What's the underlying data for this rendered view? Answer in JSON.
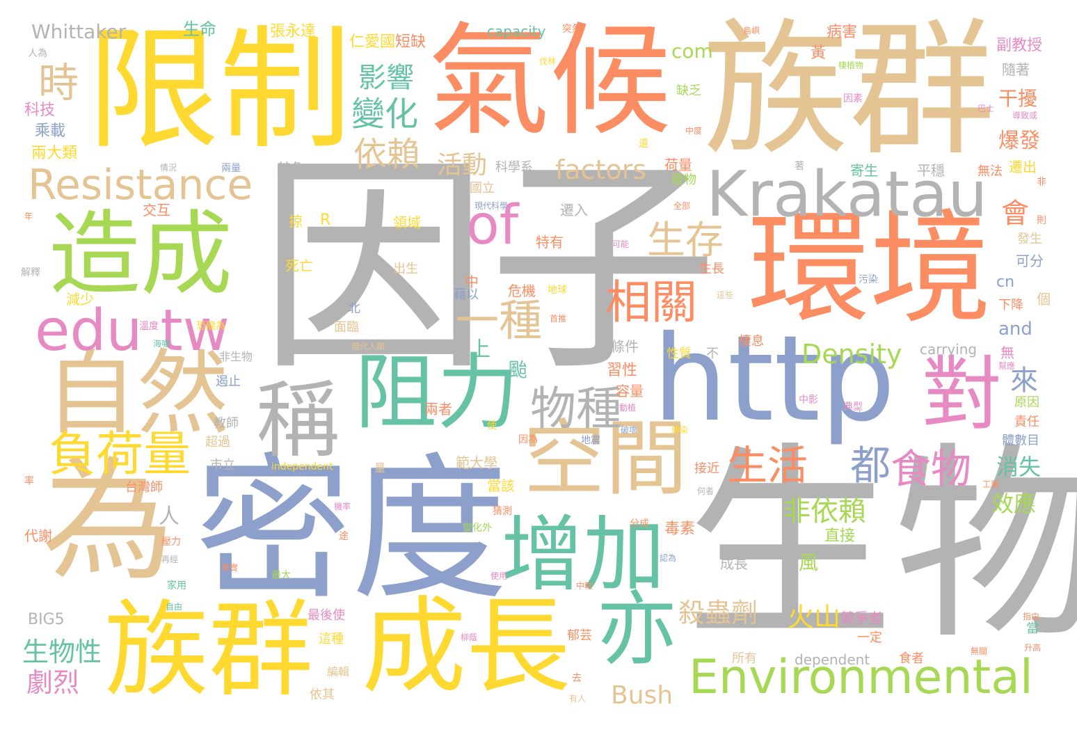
{
  "palette": {
    "gray": "#b3b3b3",
    "yellow": "#ffd92f",
    "orange": "#fc8d62",
    "tan": "#e5c494",
    "blue": "#8da0cb",
    "green": "#a6d854",
    "teal": "#66c2a5",
    "pink": "#e78ac3",
    "background": "#ffffff"
  },
  "words": [
    {
      "text": "因子",
      "color": "gray"
    },
    {
      "text": "生物",
      "color": "gray"
    },
    {
      "text": "密度",
      "color": "blue"
    },
    {
      "text": "族群",
      "color": "tan"
    },
    {
      "text": "限制",
      "color": "yellow"
    },
    {
      "text": "氣候",
      "color": "orange"
    },
    {
      "text": "環境",
      "color": "orange"
    },
    {
      "text": "為",
      "color": "tan"
    },
    {
      "text": "http",
      "color": "blue"
    },
    {
      "text": "成長",
      "color": "yellow"
    },
    {
      "text": "族群",
      "color": "yellow"
    },
    {
      "text": "自然",
      "color": "tan"
    },
    {
      "text": "造成",
      "color": "green"
    },
    {
      "text": "Krakatau",
      "color": "gray"
    },
    {
      "text": "edu tw",
      "color": "pink"
    },
    {
      "text": "空間",
      "color": "tan"
    },
    {
      "text": "增加",
      "color": "teal"
    },
    {
      "text": "阻力",
      "color": "teal"
    },
    {
      "text": "稱",
      "color": "gray"
    },
    {
      "text": "亦",
      "color": "teal"
    },
    {
      "text": "對",
      "color": "pink"
    },
    {
      "text": "Environmental",
      "color": "green"
    },
    {
      "text": "Resistance",
      "color": "tan"
    },
    {
      "text": "負荷量",
      "color": "yellow"
    },
    {
      "text": "物種",
      "color": "gray"
    },
    {
      "text": "相關",
      "color": "orange"
    },
    {
      "text": "生存",
      "color": "tan"
    },
    {
      "text": "of",
      "color": "pink"
    },
    {
      "text": "一種",
      "color": "tan"
    },
    {
      "text": "生活",
      "color": "orange"
    },
    {
      "text": "食物",
      "color": "pink"
    },
    {
      "text": "都",
      "color": "blue"
    },
    {
      "text": "變化",
      "color": "teal"
    },
    {
      "text": "依賴",
      "color": "tan"
    },
    {
      "text": "影響",
      "color": "teal"
    },
    {
      "text": "時",
      "color": "tan"
    },
    {
      "text": "factors",
      "color": "tan"
    },
    {
      "text": "活動",
      "color": "tan"
    },
    {
      "text": "會",
      "color": "orange"
    },
    {
      "text": "非依賴",
      "color": "green"
    },
    {
      "text": "殺蟲劑",
      "color": "tan"
    },
    {
      "text": "火山",
      "color": "yellow"
    },
    {
      "text": "Density",
      "color": "green"
    },
    {
      "text": "生物性",
      "color": "teal"
    },
    {
      "text": "劇烈",
      "color": "pink"
    },
    {
      "text": "Bush",
      "color": "tan"
    },
    {
      "text": "來",
      "color": "blue"
    },
    {
      "text": "消失",
      "color": "teal"
    },
    {
      "text": "效應",
      "color": "green"
    },
    {
      "text": "爆發",
      "color": "orange"
    },
    {
      "text": "干擾",
      "color": "orange"
    },
    {
      "text": "Whittaker",
      "color": "gray"
    },
    {
      "text": "com",
      "color": "green"
    },
    {
      "text": "capacity",
      "color": "teal"
    },
    {
      "text": "生命",
      "color": "teal"
    },
    {
      "text": "張永達",
      "color": "yellow"
    },
    {
      "text": "仁愛國",
      "color": "yellow"
    },
    {
      "text": "短缺",
      "color": "orange"
    },
    {
      "text": "黃",
      "color": "orange"
    },
    {
      "text": "病害",
      "color": "orange"
    },
    {
      "text": "副教授",
      "color": "pink"
    },
    {
      "text": "隨著",
      "color": "gray"
    },
    {
      "text": "科技",
      "color": "pink"
    },
    {
      "text": "乘載",
      "color": "blue"
    },
    {
      "text": "兩大類",
      "color": "yellow"
    },
    {
      "text": "人為",
      "color": "gray"
    },
    {
      "text": "其負",
      "color": "gray"
    },
    {
      "text": "科學系",
      "color": "gray"
    },
    {
      "text": "荷量",
      "color": "orange"
    },
    {
      "text": "廢物",
      "color": "green"
    },
    {
      "text": "寄生",
      "color": "teal"
    },
    {
      "text": "平穩",
      "color": "gray"
    },
    {
      "text": "無法",
      "color": "orange"
    },
    {
      "text": "遷出",
      "color": "yellow"
    },
    {
      "text": "國立",
      "color": "tan"
    },
    {
      "text": "遷入",
      "color": "gray"
    },
    {
      "text": "缺乏",
      "color": "green"
    },
    {
      "text": "特有",
      "color": "orange"
    },
    {
      "text": "交互",
      "color": "orange"
    },
    {
      "text": "掠",
      "color": "yellow"
    },
    {
      "text": "R",
      "color": "yellow"
    },
    {
      "text": "領域",
      "color": "yellow"
    },
    {
      "text": "死亡",
      "color": "yellow"
    },
    {
      "text": "出生",
      "color": "tan"
    },
    {
      "text": "危機",
      "color": "orange"
    },
    {
      "text": "地球",
      "color": "yellow"
    },
    {
      "text": "生長",
      "color": "orange"
    },
    {
      "text": "可分",
      "color": "blue"
    },
    {
      "text": "cn",
      "color": "blue"
    },
    {
      "text": "下降",
      "color": "orange"
    },
    {
      "text": "個",
      "color": "tan"
    },
    {
      "text": "and",
      "color": "blue"
    },
    {
      "text": "carrying",
      "color": "gray"
    },
    {
      "text": "無",
      "color": "pink"
    },
    {
      "text": "原因",
      "color": "green"
    },
    {
      "text": "責任",
      "color": "orange"
    },
    {
      "text": "體數目",
      "color": "blue"
    },
    {
      "text": "減少",
      "color": "yellow"
    },
    {
      "text": "藉以",
      "color": "blue"
    },
    {
      "text": "北",
      "color": "blue"
    },
    {
      "text": "面臨",
      "color": "tan"
    },
    {
      "text": "上",
      "color": "teal"
    },
    {
      "text": "颱",
      "color": "teal"
    },
    {
      "text": "人",
      "color": "gray"
    },
    {
      "text": "風",
      "color": "green"
    },
    {
      "text": "直接",
      "color": "green"
    },
    {
      "text": "毒素",
      "color": "orange"
    },
    {
      "text": "成長",
      "color": "gray"
    },
    {
      "text": "條件",
      "color": "gray"
    },
    {
      "text": "性質",
      "color": "yellow"
    },
    {
      "text": "不",
      "color": "gray"
    },
    {
      "text": "棲息",
      "color": "orange"
    },
    {
      "text": "習性",
      "color": "orange"
    },
    {
      "text": "容量",
      "color": "orange"
    },
    {
      "text": "非生物",
      "color": "gray"
    },
    {
      "text": "遏止",
      "color": "blue"
    },
    {
      "text": "教師",
      "color": "gray"
    },
    {
      "text": "超過",
      "color": "tan"
    },
    {
      "text": "市立",
      "color": "gray"
    },
    {
      "text": "independent",
      "color": "yellow"
    },
    {
      "text": "範大學",
      "color": "tan"
    },
    {
      "text": "當該",
      "color": "yellow"
    },
    {
      "text": "接近",
      "color": "orange"
    },
    {
      "text": "台灣師",
      "color": "orange"
    },
    {
      "text": "代謝",
      "color": "orange"
    },
    {
      "text": "兩者",
      "color": "orange"
    },
    {
      "text": "最後使",
      "color": "pink"
    },
    {
      "text": "這種",
      "color": "yellow"
    },
    {
      "text": "所有",
      "color": "tan"
    },
    {
      "text": "dependent",
      "color": "gray"
    },
    {
      "text": "食者",
      "color": "orange"
    },
    {
      "text": "一定",
      "color": "orange"
    },
    {
      "text": "競爭者",
      "color": "pink"
    },
    {
      "text": "BIG5",
      "color": "gray"
    },
    {
      "text": "編輯",
      "color": "tan"
    },
    {
      "text": "依其",
      "color": "tan"
    },
    {
      "text": "郁芸",
      "color": "orange"
    },
    {
      "text": "中",
      "color": "orange"
    },
    {
      "text": "典型",
      "color": "pink"
    },
    {
      "text": "中影",
      "color": "pink"
    },
    {
      "text": "率",
      "color": "orange"
    },
    {
      "text": "解釋",
      "color": "gray"
    },
    {
      "text": "海嘯",
      "color": "teal"
    },
    {
      "text": "溫度",
      "color": "pink"
    },
    {
      "text": "恐龍為",
      "color": "yellow"
    },
    {
      "text": "現代人類",
      "color": "tan"
    },
    {
      "text": "情況",
      "color": "gray"
    },
    {
      "text": "兩量",
      "color": "blue"
    },
    {
      "text": "年",
      "color": "orange"
    },
    {
      "text": "伐林",
      "color": "yellow"
    },
    {
      "text": "突然",
      "color": "orange"
    },
    {
      "text": "島嶼",
      "color": "orange"
    },
    {
      "text": "棲植物",
      "color": "green"
    },
    {
      "text": "因素",
      "color": "pink"
    },
    {
      "text": "巴士",
      "color": "pink"
    },
    {
      "text": "導致或",
      "color": "pink"
    },
    {
      "text": "中度",
      "color": "orange"
    },
    {
      "text": "現代科學",
      "color": "blue"
    },
    {
      "text": "全部",
      "color": "orange"
    },
    {
      "text": "可能",
      "color": "pink"
    },
    {
      "text": "發生",
      "color": "tan"
    },
    {
      "text": "則",
      "color": "orange"
    },
    {
      "text": "非",
      "color": "orange"
    },
    {
      "text": "污染",
      "color": "blue"
    },
    {
      "text": "這些",
      "color": "tan"
    },
    {
      "text": "首推",
      "color": "orange"
    },
    {
      "text": "幫應",
      "color": "pink"
    },
    {
      "text": "破壞",
      "color": "blue"
    },
    {
      "text": "動植",
      "color": "pink"
    },
    {
      "text": "傳染",
      "color": "yellow"
    },
    {
      "text": "因為",
      "color": "orange"
    },
    {
      "text": "地震",
      "color": "blue"
    },
    {
      "text": "變化外",
      "color": "green"
    },
    {
      "text": "分成",
      "color": "orange"
    },
    {
      "text": "猜測",
      "color": "orange"
    },
    {
      "text": "事實",
      "color": "orange"
    },
    {
      "text": "最大",
      "color": "green"
    },
    {
      "text": "家用",
      "color": "teal"
    },
    {
      "text": "自由",
      "color": "teal"
    },
    {
      "text": "中較",
      "color": "orange"
    },
    {
      "text": "使用",
      "color": "pink"
    },
    {
      "text": "壓力",
      "color": "orange"
    },
    {
      "text": "再經",
      "color": "gray"
    },
    {
      "text": "途",
      "color": "orange"
    },
    {
      "text": "機率",
      "color": "pink"
    },
    {
      "text": "去",
      "color": "orange"
    },
    {
      "text": "有人",
      "color": "tan"
    },
    {
      "text": "指由",
      "color": "orange"
    },
    {
      "text": "當",
      "color": "teal"
    },
    {
      "text": "升高",
      "color": "orange"
    },
    {
      "text": "無關",
      "color": "orange"
    },
    {
      "text": "工業",
      "color": "orange"
    },
    {
      "text": "何者",
      "color": "gray"
    },
    {
      "text": "認為",
      "color": "blue"
    },
    {
      "text": "島上",
      "color": "blue"
    },
    {
      "text": "柳蔭",
      "color": "pink"
    },
    {
      "text": "還",
      "color": "yellow"
    },
    {
      "text": "著",
      "color": "gray"
    },
    {
      "text": "量",
      "color": "tan"
    },
    {
      "text": "使",
      "color": "yellow"
    }
  ]
}
